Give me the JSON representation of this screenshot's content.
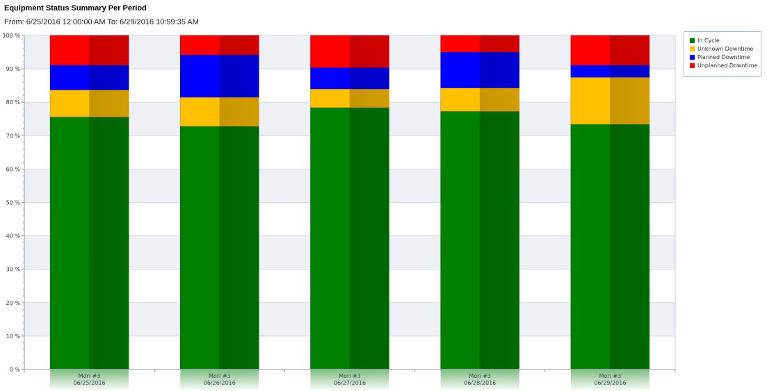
{
  "header": {
    "title": "Equipment Status Summary Per Period",
    "range": "From: 6/25/2016 12:00:00 AM To: 6/29/2016 10:59:35 AM"
  },
  "chart_data": {
    "type": "bar",
    "stacked": true,
    "percent": true,
    "title": "Equipment Status Summary Per Period",
    "categories": [
      [
        "Mori #3",
        "06/25/2016"
      ],
      [
        "Mori #3",
        "06/26/2016"
      ],
      [
        "Mori #3",
        "06/27/2016"
      ],
      [
        "Mori #3",
        "06/28/2016"
      ],
      [
        "Mori #3",
        "06/29/2016"
      ]
    ],
    "series": [
      {
        "name": "In Cycle",
        "color": "#008000",
        "values": [
          75.6,
          72.8,
          78.4,
          77.3,
          73.4
        ]
      },
      {
        "name": "Unknown Downtime",
        "color": "#FFC000",
        "values": [
          8.1,
          8.7,
          5.6,
          7.0,
          14.1
        ]
      },
      {
        "name": "Planned Downtime",
        "color": "#0000FF",
        "values": [
          7.4,
          12.7,
          6.4,
          10.7,
          3.6
        ]
      },
      {
        "name": "Unplanned Downtime",
        "color": "#FF0000",
        "values": [
          8.9,
          5.8,
          9.6,
          5.0,
          8.9
        ]
      }
    ],
    "ylim": [
      0,
      100
    ],
    "yticks": [
      "0 %",
      "10 %",
      "20 %",
      "30 %",
      "40 %",
      "50 %",
      "60 %",
      "70 %",
      "80 %",
      "90 %",
      "100 %"
    ],
    "grid": true,
    "legend_position": "top-right"
  }
}
